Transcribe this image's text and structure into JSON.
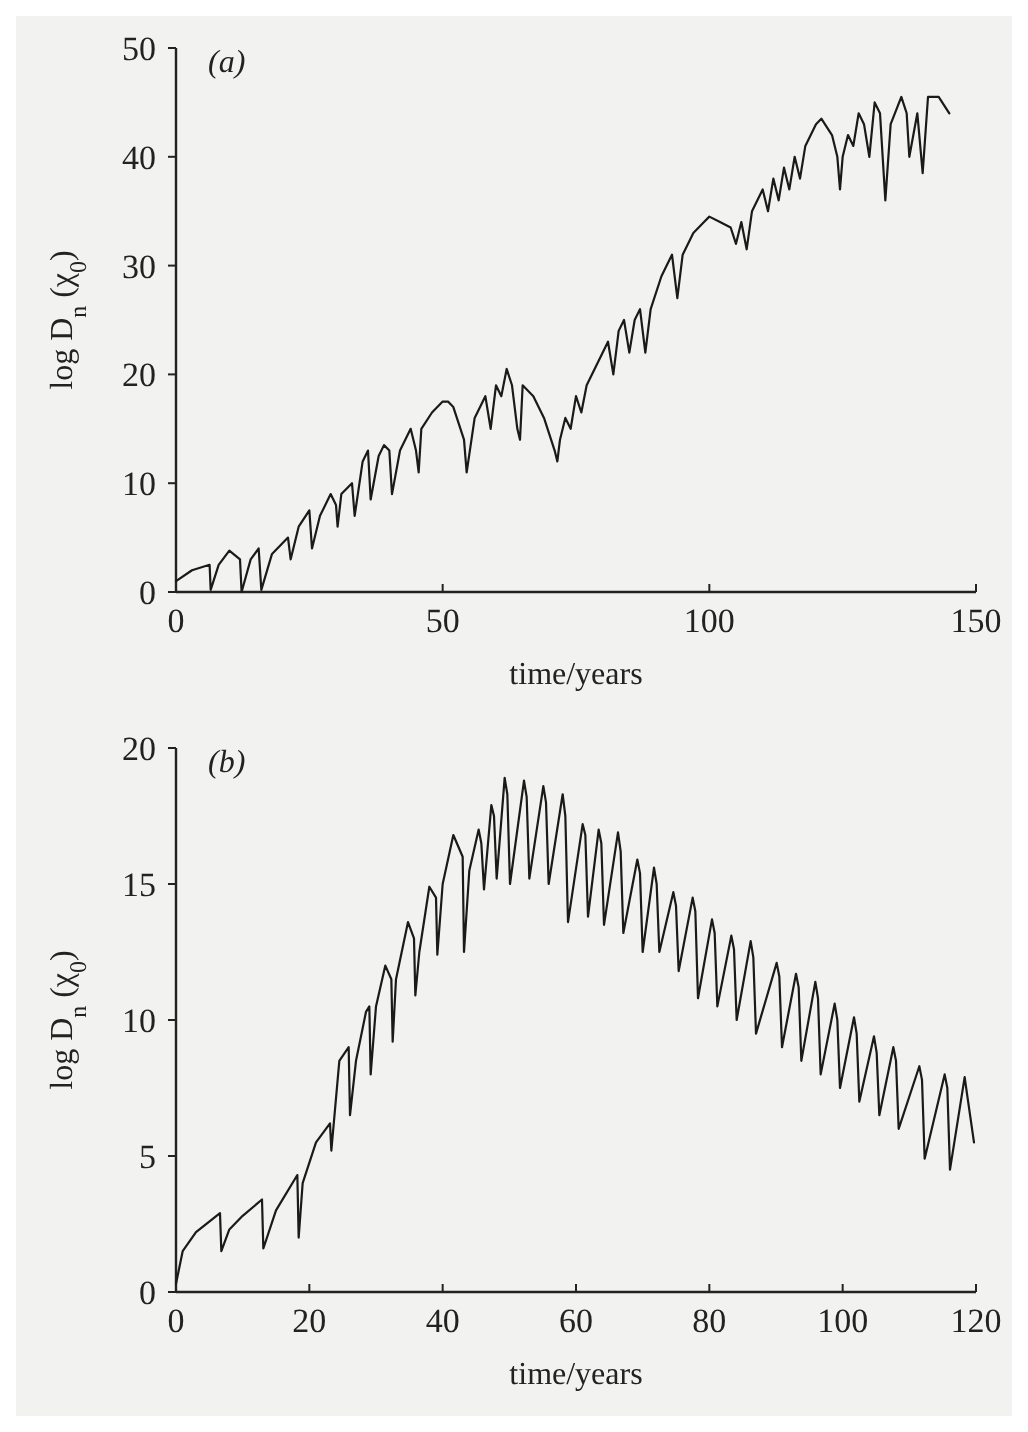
{
  "chart_data": [
    {
      "type": "line",
      "xlabel": "time/years",
      "ylabel": "log D$_{n}$ (χ$_{0}$)",
      "annotations": [
        "(a)"
      ],
      "xlim": [
        0,
        150
      ],
      "ylim": [
        0,
        50
      ],
      "xticks": [
        0,
        50,
        100,
        150
      ],
      "yticks": [
        0,
        10,
        20,
        30,
        40,
        50
      ],
      "series": [
        {
          "color": "#1a1a1a",
          "x": [
            0,
            3,
            6.3,
            6.5,
            8,
            10,
            12,
            12.3,
            14,
            15.5,
            16,
            18,
            21,
            21.5,
            23,
            25,
            25.5,
            27,
            29,
            30,
            30.3,
            31,
            33,
            33.5,
            35,
            36,
            36.5,
            38,
            39,
            40,
            40.5,
            42,
            44,
            45,
            45.5,
            46,
            48,
            50,
            51,
            52,
            54,
            54.5,
            56,
            58,
            59,
            60,
            61,
            62,
            63,
            64,
            64.5,
            65,
            67,
            69,
            71,
            71.5,
            72,
            73,
            74,
            75,
            76,
            77,
            79,
            81,
            82,
            83,
            84,
            85,
            86,
            87,
            88,
            89,
            91,
            92,
            93,
            94,
            95,
            97,
            99,
            100,
            102,
            104,
            105,
            106,
            107,
            108,
            110,
            111,
            112,
            113,
            114,
            115,
            116,
            117,
            118,
            120,
            121,
            123,
            124,
            124.5,
            125,
            126,
            127,
            128,
            129,
            130,
            131,
            132,
            133,
            134,
            136,
            137,
            137.5,
            139,
            140,
            141,
            143,
            145
          ],
          "values": [
            1,
            2,
            2.5,
            0.2,
            2.5,
            3.8,
            3,
            0,
            3,
            4,
            0.2,
            3.5,
            5,
            3,
            6,
            7.5,
            4,
            7,
            9,
            8,
            6,
            9,
            10,
            7,
            12,
            13,
            8.5,
            12.5,
            13.5,
            13,
            9,
            13,
            15,
            13,
            11,
            15,
            16.5,
            17.5,
            17.5,
            17,
            14,
            11,
            16,
            18,
            15,
            19,
            18,
            20.5,
            19,
            15,
            14,
            19,
            18,
            16,
            13,
            12,
            14,
            16,
            15,
            18,
            16.5,
            19,
            21,
            23,
            20,
            24,
            25,
            22,
            25,
            26,
            22,
            26,
            29,
            30,
            31,
            27,
            31,
            33,
            34,
            34.5,
            34,
            33.5,
            32,
            34,
            31.5,
            35,
            37,
            35,
            38,
            36,
            39,
            37,
            40,
            38,
            41,
            43,
            43.5,
            42,
            40,
            37,
            40,
            42,
            41,
            44,
            43,
            40,
            45,
            44,
            36,
            43,
            45.5,
            44,
            40,
            44,
            38.5,
            45.5,
            45.5,
            44
          ]
        }
      ]
    },
    {
      "type": "line",
      "xlabel": "time/years",
      "ylabel": "log D$_{n}$ (χ$_{0}$)",
      "annotations": [
        "(b)"
      ],
      "xlim": [
        0,
        120
      ],
      "ylim": [
        0,
        20
      ],
      "xticks": [
        0,
        20,
        40,
        60,
        80,
        100,
        120
      ],
      "yticks": [
        0,
        5,
        10,
        15,
        20
      ],
      "series": [
        {
          "color": "#1a1a1a",
          "x": [
            0,
            1,
            3,
            6.6,
            6.8,
            8,
            10,
            12.9,
            13.1,
            15,
            18.2,
            18.4,
            19,
            21,
            23.1,
            23.3,
            24.5,
            25.9,
            26.1,
            27,
            28.5,
            29,
            29.2,
            30,
            31.4,
            32.3,
            32.5,
            33,
            34.8,
            35.7,
            35.9,
            36.5,
            38,
            39,
            39.2,
            40,
            41.6,
            43,
            43.2,
            44,
            45.4,
            45.8,
            46.2,
            47.3,
            47.7,
            48.1,
            49.3,
            49.7,
            50.1,
            52.2,
            52.6,
            53,
            55.1,
            55.5,
            55.9,
            58,
            58.4,
            58.8,
            61,
            61.4,
            61.8,
            63.4,
            63.8,
            64.2,
            66.3,
            66.7,
            67.1,
            69.2,
            69.6,
            70,
            71.7,
            72.1,
            72.5,
            74.6,
            75,
            75.4,
            77.5,
            77.9,
            78.3,
            80.4,
            80.8,
            81.2,
            83.3,
            83.7,
            84.1,
            86.2,
            86.6,
            87,
            90.1,
            90.5,
            90.9,
            93,
            93.4,
            93.8,
            95.9,
            96.3,
            96.7,
            98.8,
            99.2,
            99.6,
            101.7,
            102.1,
            102.5,
            104.7,
            105.1,
            105.5,
            107.6,
            108,
            108.4,
            111.5,
            111.9,
            112.3,
            115.3,
            115.7,
            116.1,
            118.3,
            118.7,
            119.7
          ],
          "values": [
            0.3,
            1.5,
            2.2,
            2.9,
            1.5,
            2.3,
            2.8,
            3.4,
            1.6,
            3,
            4.3,
            2,
            4,
            5.5,
            6.2,
            5.2,
            8.5,
            9,
            6.5,
            8.5,
            10.3,
            10.5,
            8,
            10.5,
            12,
            11.5,
            9.2,
            11.5,
            13.6,
            13,
            10.9,
            12.5,
            14.9,
            14.5,
            12.4,
            15,
            16.8,
            16,
            12.5,
            15.5,
            17,
            16.5,
            14.8,
            17.9,
            17.5,
            15.2,
            18.9,
            18.3,
            15,
            18.8,
            18.2,
            15.2,
            18.6,
            18,
            15,
            18.3,
            17.5,
            13.6,
            17.2,
            16.8,
            13.8,
            17,
            16.5,
            13.5,
            16.9,
            16.2,
            13.2,
            15.9,
            15.4,
            12.5,
            15.6,
            15,
            12.5,
            14.7,
            14.2,
            11.8,
            14.5,
            14,
            10.8,
            13.7,
            13.2,
            10.5,
            13.1,
            12.6,
            10,
            12.9,
            12.3,
            9.5,
            12.1,
            11.6,
            9,
            11.7,
            11.2,
            8.5,
            11.4,
            10.8,
            8,
            10.6,
            10,
            7.5,
            10.1,
            9.5,
            7,
            9.4,
            8.8,
            6.5,
            9,
            8.5,
            6,
            8.3,
            7.8,
            4.9,
            8,
            7.5,
            4.5,
            7.9,
            7.2,
            5.5
          ]
        }
      ]
    }
  ]
}
